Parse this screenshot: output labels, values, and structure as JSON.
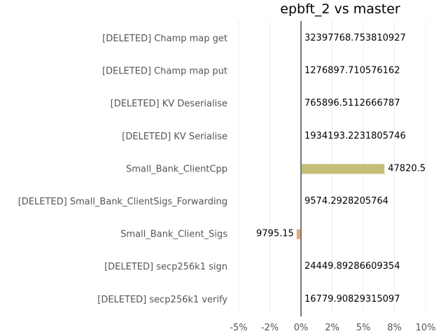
{
  "chart_data": {
    "type": "bar",
    "orientation": "horizontal",
    "title": "epbft_2 vs master",
    "xlabel": "",
    "ylabel": "",
    "xlim": [
      -5,
      10
    ],
    "x_ticks": [
      -5,
      -2.5,
      0,
      2.5,
      5,
      7.5,
      10
    ],
    "x_tick_labels": [
      "-5%",
      "-2%",
      "0%",
      "2%",
      "5%",
      "8%",
      "10%"
    ],
    "grid": "vertical",
    "categories": [
      "[DELETED] Champ map get",
      "[DELETED] Champ map put",
      "[DELETED] KV Deserialise",
      "[DELETED] KV Serialise",
      "Small_Bank_ClientCpp",
      "[DELETED] Small_Bank_ClientSigs_Forwarding",
      "Small_Bank_Client_Sigs",
      "[DELETED] secp256k1 sign",
      "[DELETED] secp256k1 verify"
    ],
    "values": [
      0,
      0,
      0,
      0,
      6.7,
      0,
      -0.35,
      0,
      0
    ],
    "value_labels": [
      "32397768.753810927",
      "1276897.710576162",
      "765896.5112666787",
      "1934193.2231805746",
      "47820.5",
      "9574.2928205764",
      "9795.15",
      "24449.89286609354",
      "16779.90829315097"
    ],
    "colors": [
      "#c3bf76",
      "#c3bf76",
      "#c3bf76",
      "#c3bf76",
      "#c3bf76",
      "#c3bf76",
      "#e8a86b",
      "#c3bf76",
      "#c3bf76"
    ]
  }
}
